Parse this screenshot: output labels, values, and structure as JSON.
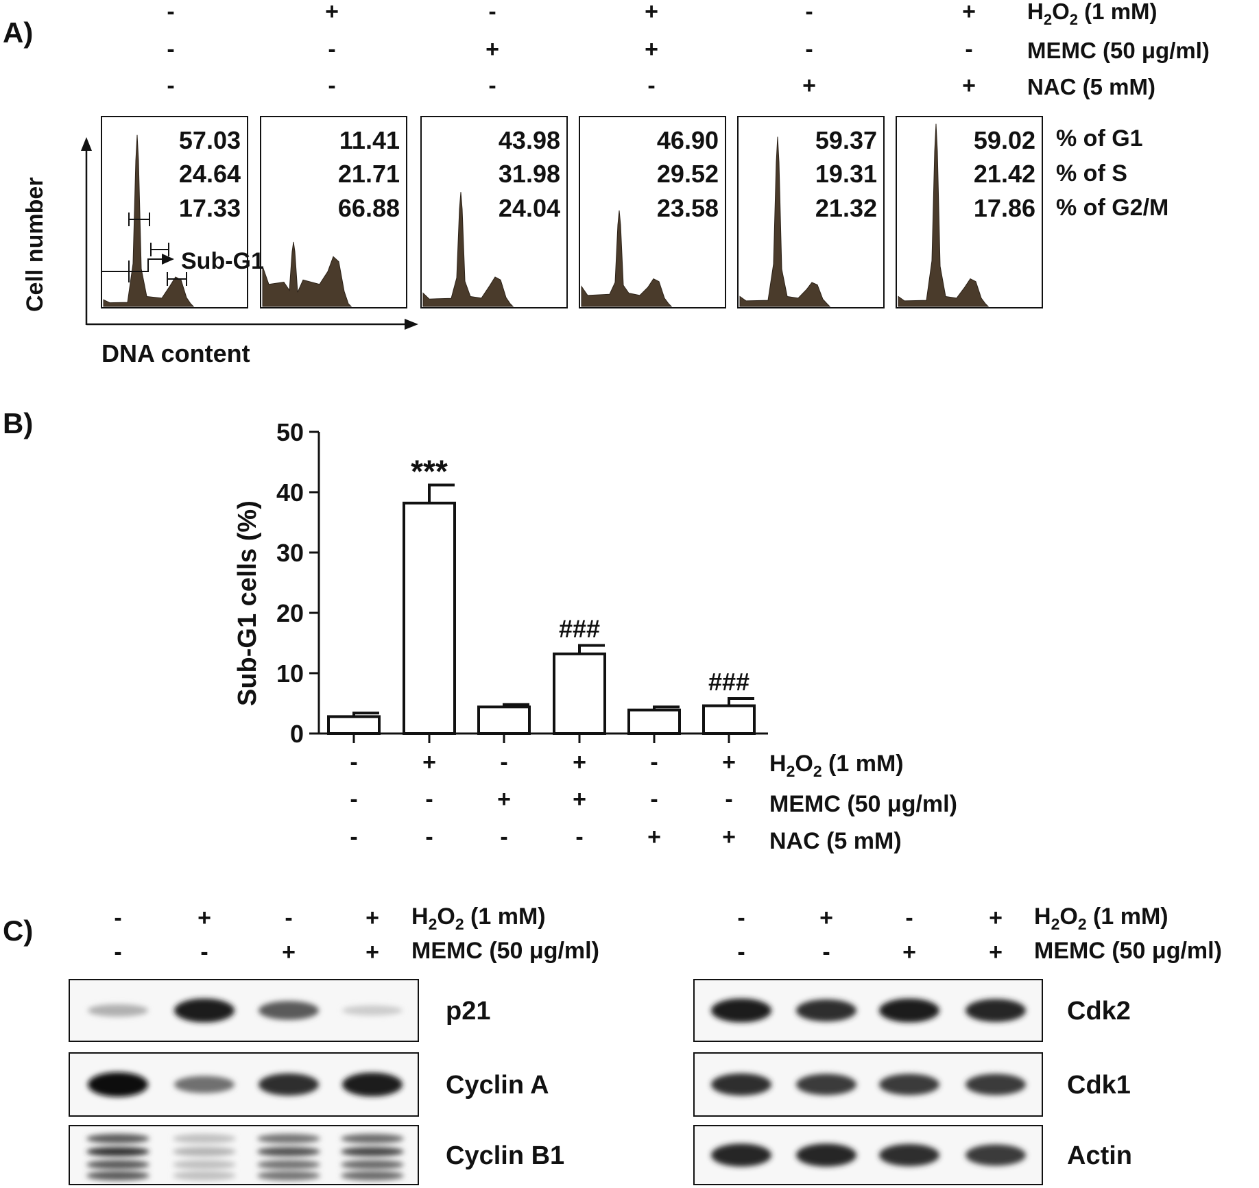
{
  "panel_letters": {
    "a": "A)",
    "b": "B)",
    "c": "C)"
  },
  "sign": {
    "plus": "+",
    "minus": "-"
  },
  "treatments": {
    "h2o2": "H2O2 (1 mM)",
    "memc": "MEMC (50 μg/ml)",
    "nac": "NAC (5 mM)"
  },
  "conditions": {
    "h2o2": [
      "-",
      "+",
      "-",
      "+",
      "-",
      "+"
    ],
    "memc": [
      "-",
      "-",
      "+",
      "+",
      "-",
      "-"
    ],
    "nac": [
      "-",
      "-",
      "-",
      "-",
      "+",
      "+"
    ]
  },
  "panel_a": {
    "y_axis_label": "Cell number",
    "x_axis_label": "DNA content",
    "gate_label": "Sub-G1",
    "row_labels": [
      "% of G1",
      "% of S",
      "% of G2/M"
    ],
    "samples": [
      {
        "g1": "57.03",
        "s": "24.64",
        "g2m": "17.33",
        "g1_peak": 0.93,
        "g2_peak": 0.16,
        "subg1_level": 0.02
      },
      {
        "g1": "11.41",
        "s": "21.71",
        "g2m": "66.88",
        "g1_peak": 0.35,
        "g2_peak": 0.27,
        "subg1_level": 0.12
      },
      {
        "g1": "43.98",
        "s": "31.98",
        "g2m": "24.04",
        "g1_peak": 0.62,
        "g2_peak": 0.16,
        "subg1_level": 0.04
      },
      {
        "g1": "46.90",
        "s": "29.52",
        "g2m": "23.58",
        "g1_peak": 0.52,
        "g2_peak": 0.15,
        "subg1_level": 0.06
      },
      {
        "g1": "59.37",
        "s": "19.31",
        "g2m": "21.32",
        "g1_peak": 0.92,
        "g2_peak": 0.13,
        "subg1_level": 0.03
      },
      {
        "g1": "59.02",
        "s": "21.42",
        "g2m": "17.86",
        "g1_peak": 0.99,
        "g2_peak": 0.15,
        "subg1_level": 0.03
      }
    ]
  },
  "chart_data": {
    "type": "bar",
    "ylabel": "Sub-G1 cells (%)",
    "ylim": [
      0,
      50
    ],
    "yticks": [
      0,
      10,
      20,
      30,
      40,
      50
    ],
    "values": [
      2.8,
      38.2,
      4.4,
      13.2,
      3.9,
      4.6
    ],
    "errors": [
      0.6,
      3.0,
      0.4,
      1.4,
      0.5,
      1.2
    ],
    "annotations": [
      "",
      "***",
      "",
      "###",
      "",
      "###"
    ]
  },
  "panel_c": {
    "left": {
      "conditions": {
        "h2o2": [
          "-",
          "+",
          "-",
          "+"
        ],
        "memc": [
          "-",
          "-",
          "+",
          "+"
        ]
      },
      "blots": [
        {
          "label": "p21",
          "bands": [
            0.25,
            0.95,
            0.65,
            0.12
          ]
        },
        {
          "label": "Cyclin A",
          "bands": [
            1.0,
            0.55,
            0.85,
            0.95
          ]
        },
        {
          "label": "Cyclin B1",
          "bands": [
            0.85,
            0.25,
            0.7,
            0.75
          ]
        }
      ]
    },
    "right": {
      "conditions": {
        "h2o2": [
          "-",
          "+",
          "-",
          "+"
        ],
        "memc": [
          "-",
          "-",
          "+",
          "+"
        ]
      },
      "blots": [
        {
          "label": "Cdk2",
          "bands": [
            0.95,
            0.85,
            0.95,
            0.9
          ]
        },
        {
          "label": "Cdk1",
          "bands": [
            0.85,
            0.8,
            0.8,
            0.8
          ]
        },
        {
          "label": "Actin",
          "bands": [
            0.9,
            0.9,
            0.85,
            0.8
          ]
        }
      ]
    }
  }
}
